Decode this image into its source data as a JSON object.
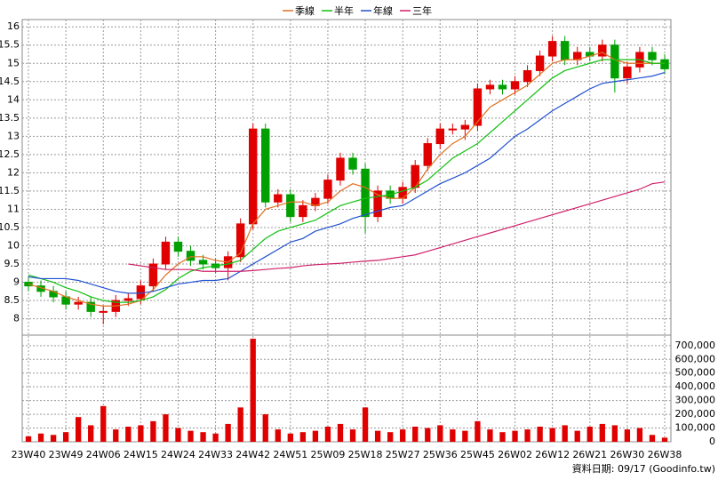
{
  "chart_data": {
    "type": "candlestick",
    "legend": [
      "季線",
      "半年",
      "年線",
      "三年"
    ],
    "footer": "資料日期: 09/17 (Goodinfo.tw)",
    "categories": [
      "23W40",
      null,
      null,
      "23W49",
      null,
      null,
      "24W06",
      null,
      null,
      "24W15",
      null,
      null,
      "24W24",
      null,
      null,
      "24W33",
      null,
      null,
      "24W42",
      null,
      null,
      "24W51",
      null,
      null,
      "25W09",
      null,
      null,
      "25W18",
      null,
      null,
      "25W27",
      null,
      null,
      "25W36",
      null,
      null,
      "25W45",
      null,
      null,
      "26W02",
      null,
      null,
      "26W12",
      null,
      null,
      "26W21",
      null,
      null,
      "26W30",
      null,
      null,
      "26W38"
    ],
    "open": [
      9.0,
      8.9,
      8.75,
      8.6,
      8.4,
      8.45,
      8.2,
      8.2,
      8.5,
      8.55,
      8.9,
      9.5,
      10.1,
      9.85,
      9.6,
      9.5,
      9.4,
      9.7,
      10.6,
      13.2,
      11.2,
      11.4,
      10.8,
      11.1,
      11.3,
      11.8,
      12.4,
      12.1,
      10.8,
      11.5,
      11.3,
      11.6,
      12.2,
      12.8,
      13.2,
      13.2,
      13.3,
      14.3,
      14.4,
      14.3,
      14.5,
      14.8,
      15.2,
      15.6,
      15.1,
      15.3,
      15.2,
      15.5,
      14.6,
      14.9,
      15.3,
      15.1
    ],
    "high": [
      9.15,
      9.05,
      8.9,
      8.75,
      8.6,
      8.6,
      8.35,
      8.65,
      8.7,
      9.05,
      9.65,
      10.25,
      10.25,
      10.0,
      9.75,
      9.65,
      9.85,
      10.75,
      13.35,
      13.35,
      11.55,
      11.55,
      11.25,
      11.45,
      11.95,
      12.55,
      12.55,
      12.25,
      11.65,
      11.65,
      11.75,
      12.35,
      12.95,
      13.35,
      13.35,
      13.45,
      14.45,
      14.55,
      14.55,
      14.65,
      14.95,
      15.35,
      15.75,
      15.75,
      15.45,
      15.45,
      15.65,
      15.65,
      15.05,
      15.45,
      15.45,
      15.25
    ],
    "low": [
      8.75,
      8.6,
      8.45,
      8.25,
      8.25,
      8.05,
      7.85,
      8.05,
      8.35,
      8.4,
      8.75,
      9.35,
      9.7,
      9.45,
      9.35,
      9.25,
      9.05,
      9.55,
      10.45,
      11.05,
      11.05,
      10.65,
      10.65,
      10.95,
      11.15,
      11.65,
      11.95,
      10.35,
      10.65,
      11.15,
      11.15,
      11.45,
      12.05,
      12.65,
      13.05,
      12.9,
      13.15,
      14.15,
      14.15,
      14.15,
      14.35,
      14.65,
      15.05,
      14.95,
      14.95,
      15.05,
      15.05,
      14.2,
      14.45,
      14.75,
      14.95,
      14.7
    ],
    "close": [
      8.9,
      8.75,
      8.6,
      8.4,
      8.45,
      8.2,
      8.2,
      8.5,
      8.55,
      8.9,
      9.5,
      10.1,
      9.85,
      9.6,
      9.5,
      9.4,
      9.7,
      10.6,
      13.2,
      11.2,
      11.4,
      10.8,
      11.1,
      11.3,
      11.8,
      12.4,
      12.1,
      10.8,
      11.5,
      11.3,
      11.6,
      12.2,
      12.8,
      13.2,
      13.2,
      13.3,
      14.3,
      14.4,
      14.3,
      14.5,
      14.8,
      15.2,
      15.6,
      15.1,
      15.3,
      15.2,
      15.5,
      14.6,
      14.9,
      15.3,
      15.1,
      14.85
    ],
    "up_color": "#e00000",
    "down_color": "#00a000",
    "series": [
      {
        "name": "季線",
        "color": "#e07020",
        "values": [
          8.95,
          8.85,
          8.75,
          8.6,
          8.5,
          8.4,
          8.35,
          8.35,
          8.4,
          8.5,
          8.8,
          9.2,
          9.5,
          9.7,
          9.7,
          9.6,
          9.55,
          9.8,
          10.6,
          11.0,
          11.1,
          11.2,
          11.2,
          11.1,
          11.2,
          11.5,
          11.7,
          11.6,
          11.4,
          11.3,
          11.3,
          11.6,
          12.1,
          12.5,
          12.8,
          13.0,
          13.4,
          13.8,
          14.0,
          14.2,
          14.4,
          14.7,
          15.0,
          15.1,
          15.1,
          15.2,
          15.3,
          15.1,
          15.0,
          15.0,
          15.0,
          15.0
        ]
      },
      {
        "name": "半年",
        "color": "#10c010",
        "values": [
          9.2,
          9.1,
          9.0,
          8.85,
          8.75,
          8.6,
          8.5,
          8.45,
          8.45,
          8.5,
          8.6,
          8.8,
          9.1,
          9.3,
          9.4,
          9.45,
          9.5,
          9.6,
          9.9,
          10.2,
          10.4,
          10.5,
          10.6,
          10.7,
          10.9,
          11.1,
          11.2,
          11.3,
          11.35,
          11.4,
          11.5,
          11.6,
          11.8,
          12.1,
          12.4,
          12.6,
          12.8,
          13.1,
          13.4,
          13.7,
          14.0,
          14.3,
          14.6,
          14.8,
          14.9,
          15.0,
          15.1,
          15.1,
          15.1,
          15.1,
          15.0,
          15.0
        ]
      },
      {
        "name": "年線",
        "color": "#2050d0",
        "values": [
          9.15,
          9.1,
          9.1,
          9.1,
          9.05,
          8.95,
          8.85,
          8.75,
          8.7,
          8.7,
          8.75,
          8.85,
          8.95,
          9.0,
          9.05,
          9.05,
          9.1,
          9.3,
          9.5,
          9.7,
          9.9,
          10.1,
          10.2,
          10.4,
          10.5,
          10.6,
          10.75,
          10.85,
          10.95,
          11.05,
          11.1,
          11.3,
          11.5,
          11.7,
          11.85,
          12.0,
          12.2,
          12.4,
          12.7,
          13.0,
          13.2,
          13.45,
          13.7,
          13.9,
          14.1,
          14.3,
          14.45,
          14.5,
          14.55,
          14.6,
          14.65,
          14.75
        ]
      },
      {
        "name": "三年",
        "color": "#d0206a",
        "values": [
          null,
          null,
          null,
          null,
          null,
          null,
          null,
          null,
          9.5,
          9.45,
          9.4,
          9.35,
          9.35,
          9.35,
          9.3,
          9.3,
          9.3,
          9.3,
          9.32,
          9.35,
          9.38,
          9.4,
          9.45,
          9.48,
          9.5,
          9.52,
          9.55,
          9.58,
          9.6,
          9.65,
          9.7,
          9.75,
          9.85,
          9.95,
          10.05,
          10.15,
          10.25,
          10.35,
          10.45,
          10.55,
          10.65,
          10.75,
          10.85,
          10.95,
          11.05,
          11.15,
          11.25,
          11.35,
          11.45,
          11.55,
          11.7,
          11.75
        ]
      }
    ],
    "ylim": [
      7.6,
      16.2
    ],
    "yticks": [
      8,
      8.5,
      9,
      9.5,
      10,
      10.5,
      11,
      11.5,
      12,
      12.5,
      13,
      13.5,
      14,
      14.5,
      15,
      15.5,
      16
    ],
    "volume": {
      "color": "#e00000",
      "values": [
        40000,
        60000,
        50000,
        70000,
        180000,
        120000,
        260000,
        90000,
        110000,
        120000,
        150000,
        200000,
        100000,
        80000,
        70000,
        60000,
        130000,
        250000,
        750000,
        200000,
        90000,
        60000,
        70000,
        80000,
        110000,
        130000,
        90000,
        250000,
        80000,
        70000,
        90000,
        110000,
        100000,
        120000,
        90000,
        80000,
        150000,
        90000,
        70000,
        80000,
        90000,
        110000,
        100000,
        120000,
        80000,
        110000,
        130000,
        120000,
        90000,
        100000,
        50000,
        30000
      ],
      "ylim": [
        0,
        770000
      ],
      "yticks": [
        0,
        {
          "value": 100000,
          "label": "100,000"
        },
        {
          "value": 200000,
          "label": "200,000"
        },
        {
          "value": 300000,
          "label": "300,000"
        },
        {
          "value": 400000,
          "label": "400,000"
        },
        {
          "value": 500000,
          "label": "500,000"
        },
        {
          "value": 600000,
          "label": "600,000"
        },
        {
          "value": 700000,
          "label": "700,000"
        }
      ]
    },
    "grid": true
  }
}
